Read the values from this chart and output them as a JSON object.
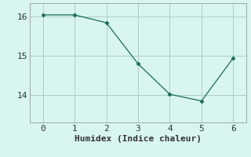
{
  "x": [
    0,
    1,
    2,
    3,
    4,
    5,
    6
  ],
  "y": [
    16.05,
    16.05,
    15.85,
    14.8,
    14.02,
    13.85,
    14.95
  ],
  "line_color": "#1a6b5a",
  "marker": "D",
  "marker_size": 2.5,
  "bg_color": "#d8f5ef",
  "grid_color": "#b0ccc8",
  "xlabel": "Humidex (Indice chaleur)",
  "xlabel_fontsize": 8,
  "tick_fontsize": 8,
  "yticks": [
    14,
    15,
    16
  ],
  "xticks": [
    0,
    1,
    2,
    3,
    4,
    5,
    6
  ],
  "ylim": [
    13.3,
    16.35
  ],
  "xlim": [
    -0.4,
    6.4
  ]
}
